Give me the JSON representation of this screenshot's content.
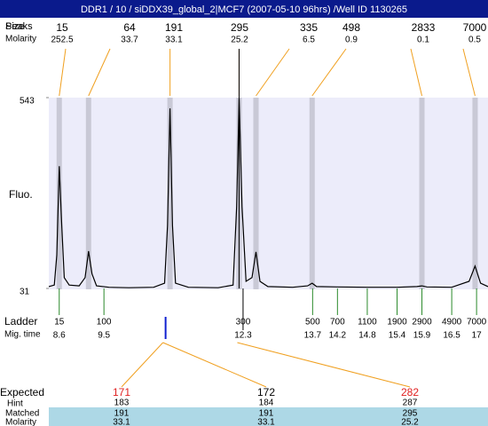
{
  "header": {
    "title": "DDR1 / 10 / siDDX39_global_2|MCF7 (2007-05-10 96hrs) /Well ID 1130265"
  },
  "peaks": {
    "label_a": "Peaks",
    "label_b": "Size",
    "label_molarity": "Molarity",
    "sizes": [
      15,
      64,
      191,
      295,
      335,
      498,
      2833,
      7000
    ],
    "molarity": [
      252.5,
      33.7,
      33.1,
      25.2,
      6.5,
      0.9,
      0.1,
      0.5
    ]
  },
  "chart_data": {
    "type": "line",
    "y_label": "Fluo.",
    "color": "#000000",
    "x": [
      8.39,
      8.5,
      8.55,
      8.6,
      8.65,
      8.7,
      8.8,
      9.0,
      9.12,
      9.19,
      9.26,
      9.35,
      9.6,
      10.0,
      10.5,
      10.72,
      10.78,
      10.83,
      10.88,
      10.94,
      11.2,
      11.8,
      12.1,
      12.17,
      12.22,
      12.28,
      12.36,
      12.48,
      12.56,
      12.64,
      12.8,
      13.3,
      13.6,
      13.69,
      13.78,
      14.2,
      14.8,
      15.4,
      15.8,
      15.9,
      16.0,
      16.5,
      16.85,
      16.97,
      17.08,
      17.23
    ],
    "values": [
      36,
      40,
      120,
      359,
      200,
      60,
      40,
      38,
      60,
      131,
      70,
      38,
      34,
      33,
      34,
      45,
      200,
      514,
      200,
      45,
      34,
      33,
      40,
      250,
      540,
      250,
      50,
      60,
      129,
      50,
      36,
      34,
      38,
      45,
      36,
      35,
      34,
      34,
      36,
      38,
      35,
      34,
      50,
      91,
      45,
      36
    ],
    "xlim": [
      8.39,
      17.23
    ],
    "ylim": [
      31,
      543
    ],
    "yticks": [
      31,
      543
    ]
  },
  "ladder": {
    "label": "Ladder",
    "time_label": "Mig. time",
    "sizes": [
      15,
      100,
      300,
      500,
      700,
      1100,
      1900,
      2900,
      4900,
      7000
    ],
    "times": [
      8.6,
      9.5,
      12.3,
      13.7,
      14.2,
      14.8,
      15.4,
      15.9,
      16.5,
      17
    ]
  },
  "expected": {
    "row_labels": [
      "Expected",
      "Hint",
      "Matched",
      "Molarity"
    ],
    "columns": [
      {
        "expected": 171,
        "hint": 183,
        "matched": 191,
        "molarity": 33.1,
        "color": "#e02020"
      },
      {
        "expected": 172,
        "hint": 184,
        "matched": 191,
        "molarity": 33.1,
        "color": "#000000"
      },
      {
        "expected": 282,
        "hint": 287,
        "matched": 295,
        "molarity": 25.2,
        "color": "#e02020"
      }
    ]
  }
}
